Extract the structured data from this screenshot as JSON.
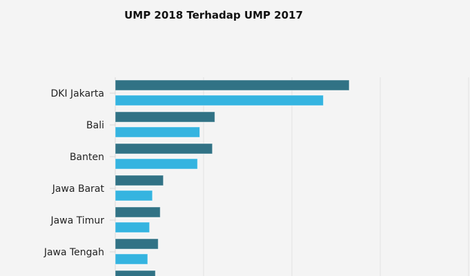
{
  "chart_data": {
    "type": "bar",
    "orientation": "horizontal",
    "title": "UMP 2018 Terhadap UMP 2017",
    "xlabel": "",
    "ylabel": "",
    "xlim": [
      1000000,
      5000000
    ],
    "grid": true,
    "categories": [
      "DKI Jakarta",
      "Bali",
      "Banten",
      "Jawa Barat",
      "Jawa Timur",
      "Jawa Tengah",
      ""
    ],
    "series": [
      {
        "name": "UMP 2018",
        "color": "#317285",
        "values": [
          3648035,
          2127157,
          2099385,
          1544360,
          1508894,
          1486065,
          1454154
        ]
      },
      {
        "name": "UMP 2017",
        "color": "#35b4e0",
        "values": [
          3355750,
          1956727,
          1931180,
          1420624,
          1388000,
          1367000,
          null
        ]
      }
    ]
  }
}
